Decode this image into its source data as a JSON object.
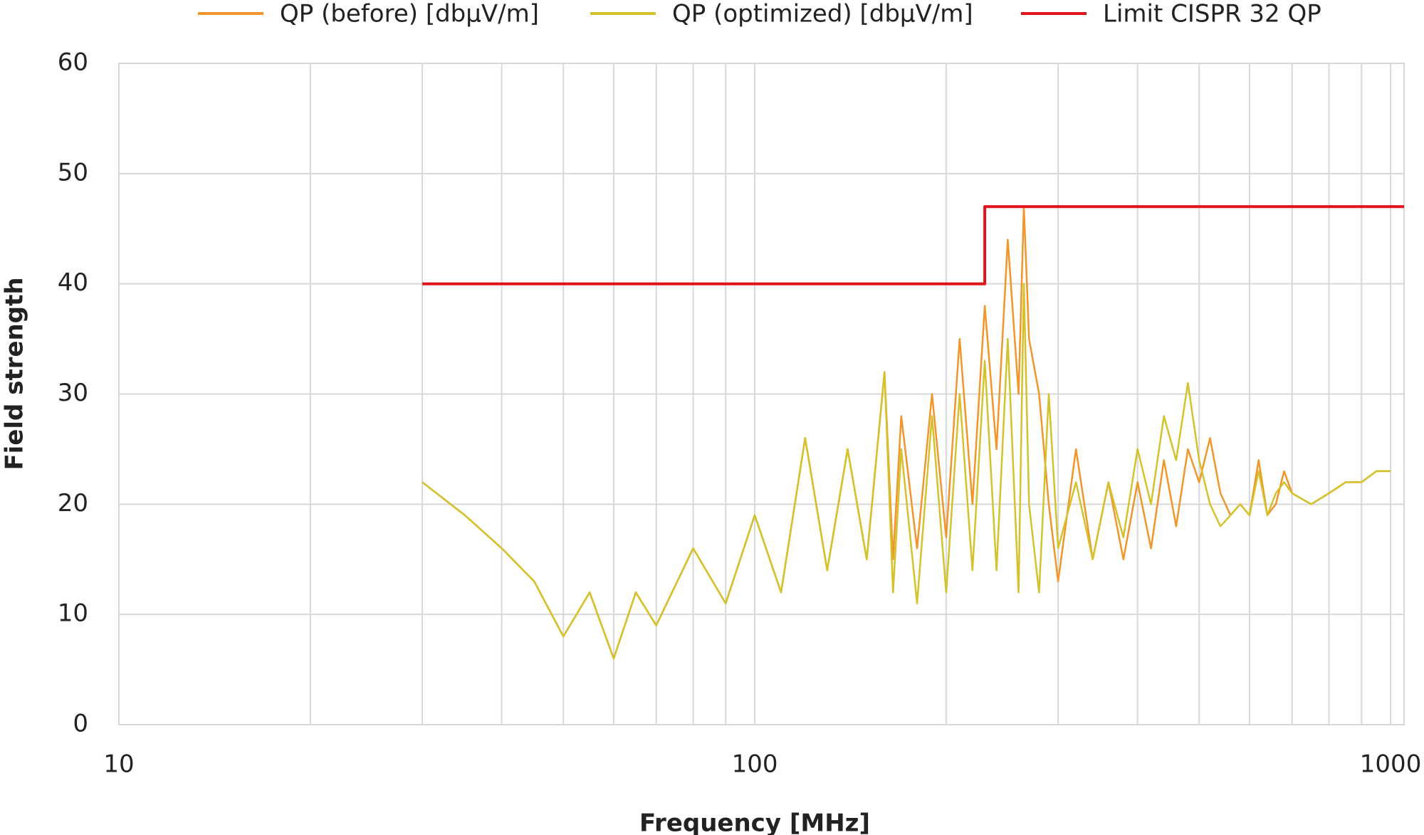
{
  "chart_data": {
    "type": "line",
    "xlabel": "Frequency [MHz]",
    "ylabel": "Field strength",
    "xscale": "log",
    "grid": true,
    "xlim": [
      10,
      1050
    ],
    "ylim": [
      0,
      60
    ],
    "xticks": [
      10,
      100,
      1000
    ],
    "xminorticks": [
      20,
      30,
      40,
      50,
      60,
      70,
      80,
      90,
      200,
      300,
      400,
      500,
      600,
      700,
      800,
      900
    ],
    "yticks": [
      0,
      10,
      20,
      30,
      40,
      50,
      60
    ],
    "legend": "top",
    "x": [
      30,
      35,
      40,
      45,
      50,
      55,
      60,
      65,
      70,
      80,
      90,
      100,
      110,
      120,
      130,
      140,
      150,
      160,
      165,
      170,
      180,
      190,
      200,
      210,
      220,
      230,
      240,
      250,
      260,
      265,
      270,
      280,
      290,
      300,
      320,
      340,
      360,
      380,
      400,
      420,
      440,
      460,
      480,
      500,
      520,
      540,
      560,
      580,
      600,
      620,
      640,
      660,
      680,
      700,
      750,
      800,
      850,
      900,
      950,
      1000
    ],
    "series": [
      {
        "name": "QP (before) [dbµV/m]",
        "color": "#f0962a",
        "values": [
          22,
          19,
          16,
          13,
          8,
          12,
          6,
          12,
          9,
          16,
          11,
          19,
          12,
          26,
          14,
          25,
          15,
          32,
          15,
          28,
          16,
          30,
          17,
          35,
          20,
          38,
          25,
          44,
          30,
          47,
          35,
          30,
          20,
          13,
          25,
          15,
          22,
          15,
          22,
          16,
          24,
          18,
          25,
          22,
          26,
          21,
          19,
          20,
          19,
          24,
          19,
          20,
          23,
          21,
          20,
          21,
          22,
          22,
          23,
          23
        ]
      },
      {
        "name": "QP (optimized) [dbµV/m]",
        "color": "#d4c22c",
        "values": [
          22,
          19,
          16,
          13,
          8,
          12,
          6,
          12,
          9,
          16,
          11,
          19,
          12,
          26,
          14,
          25,
          15,
          32,
          12,
          25,
          11,
          28,
          12,
          30,
          14,
          33,
          14,
          35,
          12,
          40,
          20,
          12,
          30,
          16,
          22,
          15,
          22,
          17,
          25,
          20,
          28,
          24,
          31,
          24,
          20,
          18,
          19,
          20,
          19,
          23,
          19,
          21,
          22,
          21,
          20,
          21,
          22,
          22,
          23,
          23
        ]
      },
      {
        "name": "Limit CISPR 32 QP",
        "color": "#e0121a",
        "x": [
          30,
          230,
          230,
          1050
        ],
        "values": [
          40,
          40,
          47,
          47
        ]
      }
    ]
  }
}
